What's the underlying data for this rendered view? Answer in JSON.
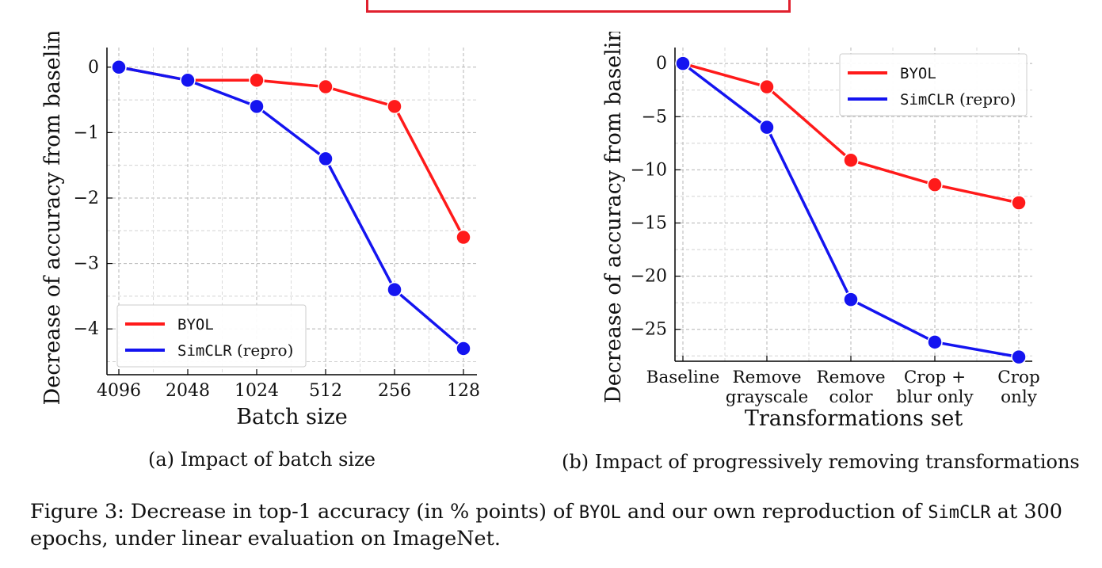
{
  "chart_data": [
    {
      "type": "line",
      "categories": [
        "4096",
        "2048",
        "1024",
        "512",
        "256",
        "128"
      ],
      "xlabel": "Batch size",
      "ylabel": "Decrease of accuracy from baseline",
      "ylim": [
        -4.7,
        0.3
      ],
      "yticks": [
        0,
        -1,
        -2,
        -3,
        -4
      ],
      "ytick_labels": [
        "0",
        "−1",
        "−2",
        "−3",
        "−4"
      ],
      "grid": true,
      "legend_position": "bottom-left",
      "series": [
        {
          "name": "BYOL",
          "color": "#ff1a1a",
          "values": [
            0,
            -0.2,
            -0.2,
            -0.3,
            -0.6,
            -2.6
          ]
        },
        {
          "name": "SimCLR (repro)",
          "color": "#1414f0",
          "values": [
            0,
            -0.2,
            -0.6,
            -1.4,
            -3.4,
            -4.3
          ]
        }
      ]
    },
    {
      "type": "line",
      "categories": [
        "Baseline",
        "Remove grayscale",
        "Remove color",
        "Crop + blur only",
        "Crop only"
      ],
      "category_lines": [
        [
          "Baseline"
        ],
        [
          "Remove",
          "grayscale"
        ],
        [
          "Remove",
          "color"
        ],
        [
          "Crop +",
          "blur only"
        ],
        [
          "Crop",
          "only"
        ]
      ],
      "xlabel": "Transformations set",
      "ylabel": "Decrease of accuracy from baseline",
      "ylim": [
        -28,
        1.5
      ],
      "yticks": [
        0,
        -5,
        -10,
        -15,
        -20,
        -25
      ],
      "ytick_labels": [
        "0",
        "−5",
        "−10",
        "−15",
        "−20",
        "−25"
      ],
      "grid": true,
      "legend_position": "top-right",
      "series": [
        {
          "name": "BYOL",
          "color": "#ff1a1a",
          "values": [
            0,
            -2.2,
            -9.1,
            -11.4,
            -13.1
          ]
        },
        {
          "name": "SimCLR (repro)",
          "color": "#1414f0",
          "values": [
            0,
            -6.0,
            -22.2,
            -26.2,
            -27.6
          ]
        }
      ]
    }
  ],
  "captions": {
    "a": "(a) Impact of batch size",
    "b": "(b) Impact of progressively removing transformations"
  },
  "figure_caption": {
    "prefix": "Figure 3: Decrease in top-1 accuracy (in % points) of ",
    "byol": "BYOL",
    "mid": " and our own reproduction of ",
    "simclr": "SimCLR",
    "suffix": " at 300 epochs, under linear evaluation on ImageNet."
  }
}
